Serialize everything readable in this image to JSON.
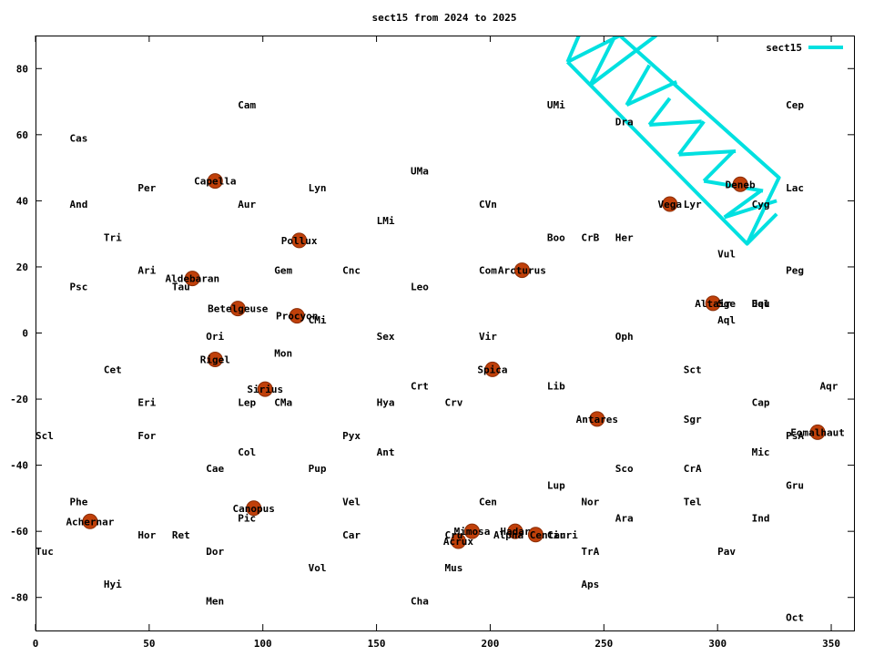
{
  "chart_data": {
    "type": "scatter",
    "title": "sect15 from 2024 to 2025",
    "xlabel": "",
    "ylabel": "",
    "xlim": [
      0,
      360
    ],
    "ylim": [
      -90,
      90
    ],
    "xticks": [
      0,
      50,
      100,
      150,
      200,
      250,
      300,
      350
    ],
    "yticks": [
      -80,
      -60,
      -40,
      -20,
      0,
      20,
      40,
      60,
      80
    ],
    "grid": false,
    "legend": "top-right",
    "colors": {
      "star": "#c0400a",
      "path": "#00e0e0",
      "text": "#000000"
    },
    "constellations": [
      {
        "name": "Cam",
        "ra": 89,
        "dec": 69
      },
      {
        "name": "UMi",
        "ra": 225,
        "dec": 69
      },
      {
        "name": "Cep",
        "ra": 330,
        "dec": 69
      },
      {
        "name": "Cas",
        "ra": 15,
        "dec": 59
      },
      {
        "name": "Dra",
        "ra": 255,
        "dec": 64
      },
      {
        "name": "UMa",
        "ra": 165,
        "dec": 49
      },
      {
        "name": "Per",
        "ra": 45,
        "dec": 44
      },
      {
        "name": "Lyn",
        "ra": 120,
        "dec": 44
      },
      {
        "name": "Lac",
        "ra": 330,
        "dec": 44
      },
      {
        "name": "And",
        "ra": 15,
        "dec": 39
      },
      {
        "name": "Aur",
        "ra": 89,
        "dec": 39
      },
      {
        "name": "CVn",
        "ra": 195,
        "dec": 39
      },
      {
        "name": "Cyg",
        "ra": 315,
        "dec": 39
      },
      {
        "name": "Lyr",
        "ra": 285,
        "dec": 39
      },
      {
        "name": "LMi",
        "ra": 150,
        "dec": 34
      },
      {
        "name": "Tri",
        "ra": 30,
        "dec": 29
      },
      {
        "name": "Boo",
        "ra": 225,
        "dec": 29
      },
      {
        "name": "CrB",
        "ra": 240,
        "dec": 29
      },
      {
        "name": "Her",
        "ra": 255,
        "dec": 29
      },
      {
        "name": "Vul",
        "ra": 300,
        "dec": 24
      },
      {
        "name": "Ari",
        "ra": 45,
        "dec": 19
      },
      {
        "name": "Gem",
        "ra": 105,
        "dec": 19
      },
      {
        "name": "Cnc",
        "ra": 135,
        "dec": 19
      },
      {
        "name": "Com",
        "ra": 195,
        "dec": 19
      },
      {
        "name": "Peg",
        "ra": 330,
        "dec": 19
      },
      {
        "name": "Psc",
        "ra": 15,
        "dec": 14
      },
      {
        "name": "Tau",
        "ra": 60,
        "dec": 14
      },
      {
        "name": "Leo",
        "ra": 165,
        "dec": 14
      },
      {
        "name": "Sge",
        "ra": 300,
        "dec": 9
      },
      {
        "name": "Equ",
        "ra": 315,
        "dec": 9
      },
      {
        "name": "Del",
        "ra": 315,
        "dec": 9
      },
      {
        "name": "Aql",
        "ra": 300,
        "dec": 4
      },
      {
        "name": "CMi",
        "ra": 120,
        "dec": 4
      },
      {
        "name": "Ori",
        "ra": 75,
        "dec": -1
      },
      {
        "name": "Sex",
        "ra": 150,
        "dec": -1
      },
      {
        "name": "Vir",
        "ra": 195,
        "dec": -1
      },
      {
        "name": "Oph",
        "ra": 255,
        "dec": -1
      },
      {
        "name": "Mon",
        "ra": 105,
        "dec": -6
      },
      {
        "name": "Cet",
        "ra": 30,
        "dec": -11
      },
      {
        "name": "Sct",
        "ra": 285,
        "dec": -11
      },
      {
        "name": "Crt",
        "ra": 165,
        "dec": -16
      },
      {
        "name": "Lib",
        "ra": 225,
        "dec": -16
      },
      {
        "name": "Aqr",
        "ra": 345,
        "dec": -16
      },
      {
        "name": "Eri",
        "ra": 45,
        "dec": -21
      },
      {
        "name": "Lep",
        "ra": 89,
        "dec": -21
      },
      {
        "name": "CMa",
        "ra": 105,
        "dec": -21
      },
      {
        "name": "Hya",
        "ra": 150,
        "dec": -21
      },
      {
        "name": "Crv",
        "ra": 180,
        "dec": -21
      },
      {
        "name": "Cap",
        "ra": 315,
        "dec": -21
      },
      {
        "name": "Sgr",
        "ra": 285,
        "dec": -26
      },
      {
        "name": "Scl",
        "ra": 0,
        "dec": -31
      },
      {
        "name": "For",
        "ra": 45,
        "dec": -31
      },
      {
        "name": "Pyx",
        "ra": 135,
        "dec": -31
      },
      {
        "name": "PsA",
        "ra": 330,
        "dec": -31
      },
      {
        "name": "Col",
        "ra": 89,
        "dec": -36
      },
      {
        "name": "Ant",
        "ra": 150,
        "dec": -36
      },
      {
        "name": "Mic",
        "ra": 315,
        "dec": -36
      },
      {
        "name": "Cae",
        "ra": 75,
        "dec": -41
      },
      {
        "name": "Pup",
        "ra": 120,
        "dec": -41
      },
      {
        "name": "Sco",
        "ra": 255,
        "dec": -41
      },
      {
        "name": "CrA",
        "ra": 285,
        "dec": -41
      },
      {
        "name": "Lup",
        "ra": 225,
        "dec": -46
      },
      {
        "name": "Gru",
        "ra": 330,
        "dec": -46
      },
      {
        "name": "Phe",
        "ra": 15,
        "dec": -51
      },
      {
        "name": "Vel",
        "ra": 135,
        "dec": -51
      },
      {
        "name": "Cen",
        "ra": 195,
        "dec": -51
      },
      {
        "name": "Nor",
        "ra": 240,
        "dec": -51
      },
      {
        "name": "Tel",
        "ra": 285,
        "dec": -51
      },
      {
        "name": "Pic",
        "ra": 89,
        "dec": -56
      },
      {
        "name": "Ara",
        "ra": 255,
        "dec": -56
      },
      {
        "name": "Ind",
        "ra": 315,
        "dec": -56
      },
      {
        "name": "Hor",
        "ra": 45,
        "dec": -61
      },
      {
        "name": "Ret",
        "ra": 60,
        "dec": -61
      },
      {
        "name": "Car",
        "ra": 135,
        "dec": -61
      },
      {
        "name": "Cru",
        "ra": 180,
        "dec": -61
      },
      {
        "name": "Cir",
        "ra": 225,
        "dec": -61
      },
      {
        "name": "Tuc",
        "ra": 0,
        "dec": -66
      },
      {
        "name": "Dor",
        "ra": 75,
        "dec": -66
      },
      {
        "name": "TrA",
        "ra": 240,
        "dec": -66
      },
      {
        "name": "Pav",
        "ra": 300,
        "dec": -66
      },
      {
        "name": "Vol",
        "ra": 120,
        "dec": -71
      },
      {
        "name": "Mus",
        "ra": 180,
        "dec": -71
      },
      {
        "name": "Hyi",
        "ra": 30,
        "dec": -76
      },
      {
        "name": "Aps",
        "ra": 240,
        "dec": -76
      },
      {
        "name": "Men",
        "ra": 75,
        "dec": -81
      },
      {
        "name": "Cha",
        "ra": 165,
        "dec": -81
      },
      {
        "name": "Oct",
        "ra": 330,
        "dec": -86
      }
    ],
    "stars": [
      {
        "name": "Capella",
        "ra": 79,
        "dec": 46
      },
      {
        "name": "Deneb",
        "ra": 310,
        "dec": 45
      },
      {
        "name": "Vega",
        "ra": 279,
        "dec": 39
      },
      {
        "name": "Pollux",
        "ra": 116,
        "dec": 28
      },
      {
        "name": "Arcturus",
        "ra": 214,
        "dec": 19
      },
      {
        "name": "Aldebaran",
        "ra": 69,
        "dec": 16.5
      },
      {
        "name": "Altair",
        "ra": 298,
        "dec": 9
      },
      {
        "name": "Betelgeuse",
        "ra": 89,
        "dec": 7.4
      },
      {
        "name": "Procyon",
        "ra": 115,
        "dec": 5.2
      },
      {
        "name": "Rigel",
        "ra": 79,
        "dec": -8
      },
      {
        "name": "Spica",
        "ra": 201,
        "dec": -11
      },
      {
        "name": "Sirius",
        "ra": 101,
        "dec": -17
      },
      {
        "name": "Antares",
        "ra": 247,
        "dec": -26
      },
      {
        "name": "Fomalhaut",
        "ra": 344,
        "dec": -30
      },
      {
        "name": "Canopus",
        "ra": 96,
        "dec": -53
      },
      {
        "name": "Achernar",
        "ra": 24,
        "dec": -57
      },
      {
        "name": "Mimosa",
        "ra": 192,
        "dec": -60
      },
      {
        "name": "Hadar",
        "ra": 211,
        "dec": -60
      },
      {
        "name": "Alpha Centauri",
        "ra": 220,
        "dec": -61
      },
      {
        "name": "Acrux",
        "ra": 186,
        "dec": -63
      }
    ],
    "series": [
      {
        "name": "sect15",
        "polylines": [
          [
            [
              234,
              82
            ],
            [
              239,
              90
            ]
          ],
          [
            [
              234,
              82
            ],
            [
              257,
              90
            ]
          ],
          [
            [
              244,
              75
            ],
            [
              273,
              90
            ]
          ],
          [
            [
              244,
              75
            ],
            [
              255,
              90
            ]
          ],
          [
            [
              260,
              69
            ],
            [
              270,
              81
            ]
          ],
          [
            [
              260,
              69
            ],
            [
              282,
              76
            ]
          ],
          [
            [
              270,
              63
            ],
            [
              279,
              71
            ]
          ],
          [
            [
              270,
              63
            ],
            [
              293,
              64
            ]
          ],
          [
            [
              283,
              54
            ],
            [
              294,
              64
            ]
          ],
          [
            [
              283,
              54
            ],
            [
              308,
              55
            ]
          ],
          [
            [
              294,
              46
            ],
            [
              307,
              55
            ]
          ],
          [
            [
              294,
              46
            ],
            [
              320,
              43
            ]
          ],
          [
            [
              303,
              35
            ],
            [
              319,
              43
            ]
          ],
          [
            [
              303,
              35
            ],
            [
              326,
              40
            ]
          ],
          [
            [
              313,
              27
            ],
            [
              326,
              36
            ]
          ],
          [
            [
              234,
              82
            ],
            [
              313,
              27
            ],
            [
              327,
              47
            ],
            [
              257,
              90
            ]
          ]
        ]
      }
    ]
  }
}
